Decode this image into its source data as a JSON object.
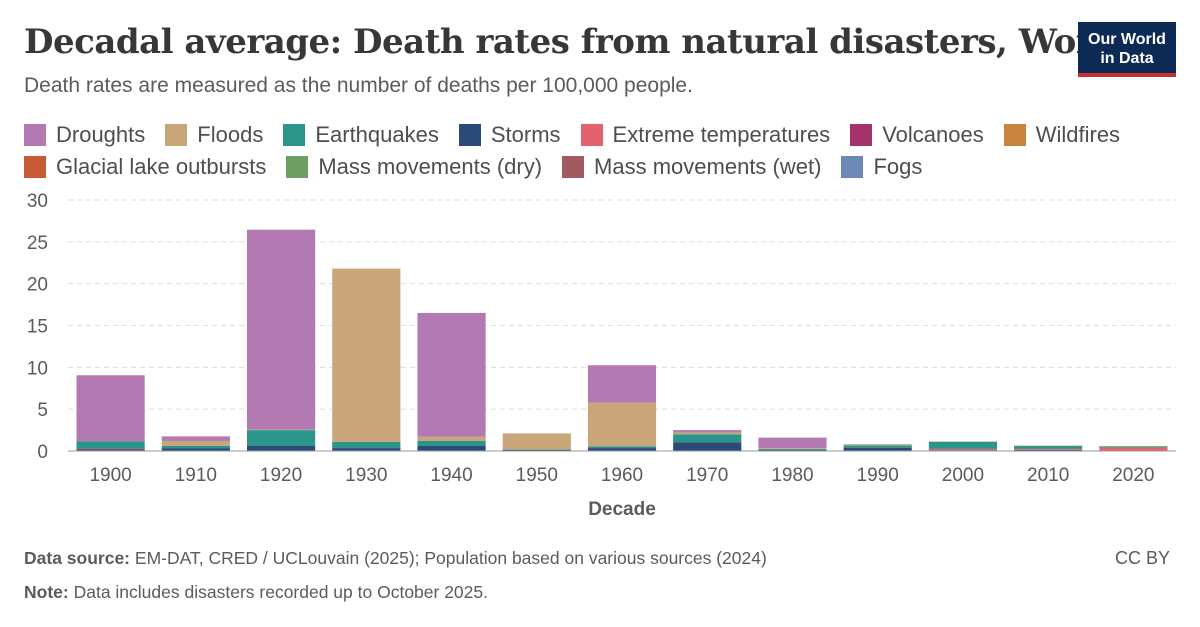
{
  "header": {
    "title": "Decadal average: Death rates from natural disasters, World",
    "subtitle": "Death rates are measured as the number of deaths per 100,000 people.",
    "logo_line1": "Our World",
    "logo_line2": "in Data"
  },
  "footer": {
    "source_label": "Data source:",
    "source_text": "EM-DAT, CRED / UCLouvain (2025); Population based on various sources (2024)",
    "note_label": "Note:",
    "note_text": "Data includes disasters recorded up to October 2025.",
    "license": "CC BY"
  },
  "chart_data": {
    "type": "bar",
    "stacked": true,
    "xlabel": "Decade",
    "ylabel": "",
    "ylim": [
      0,
      30
    ],
    "yticks": [
      0,
      5,
      10,
      15,
      20,
      25,
      30
    ],
    "grid": "horizontal-dashed",
    "legend_position": "top",
    "categories": [
      "1900",
      "1910",
      "1920",
      "1930",
      "1940",
      "1950",
      "1960",
      "1970",
      "1980",
      "1990",
      "2000",
      "2010",
      "2020"
    ],
    "series": [
      {
        "name": "Volcanoes",
        "color": "#a4336c",
        "values": [
          0.2,
          0,
          0,
          0,
          0,
          0,
          0,
          0,
          0,
          0,
          0,
          0,
          0
        ]
      },
      {
        "name": "Storms",
        "color": "#2c4a78",
        "values": [
          0.05,
          0.3,
          0.6,
          0.35,
          0.6,
          0.15,
          0.35,
          1.05,
          0.15,
          0.4,
          0.1,
          0.15,
          0.05
        ]
      },
      {
        "name": "Extreme temperatures",
        "color": "#e2636f",
        "values": [
          0,
          0,
          0,
          0,
          0,
          0,
          0,
          0,
          0,
          0,
          0.15,
          0.1,
          0.35
        ]
      },
      {
        "name": "Earthquakes",
        "color": "#2c958a",
        "values": [
          0.9,
          0.3,
          1.9,
          0.75,
          0.6,
          0.05,
          0.2,
          0.95,
          0.1,
          0.25,
          0.85,
          0.35,
          0.1
        ]
      },
      {
        "name": "Floods",
        "color": "#c9a679",
        "values": [
          0,
          0.6,
          0.05,
          20.7,
          0.5,
          1.9,
          5.25,
          0.2,
          0.1,
          0.1,
          0.05,
          0.05,
          0.05
        ]
      },
      {
        "name": "Mass movements (dry)",
        "color": "#6e9e62",
        "values": [
          0,
          0,
          0,
          0,
          0,
          0,
          0,
          0,
          0,
          0.05,
          0,
          0,
          0.05
        ]
      },
      {
        "name": "Wildfires",
        "color": "#c88540",
        "values": [
          0,
          0,
          0,
          0,
          0,
          0,
          0,
          0,
          0,
          0,
          0,
          0,
          0
        ]
      },
      {
        "name": "Glacial lake outbursts",
        "color": "#c65a36",
        "values": [
          0,
          0,
          0,
          0,
          0,
          0,
          0,
          0,
          0,
          0,
          0,
          0,
          0
        ]
      },
      {
        "name": "Mass movements (wet)",
        "color": "#a15a62",
        "values": [
          0,
          0,
          0,
          0,
          0,
          0,
          0,
          0,
          0,
          0,
          0,
          0,
          0
        ]
      },
      {
        "name": "Fogs",
        "color": "#6d88b5",
        "values": [
          0,
          0,
          0,
          0,
          0,
          0,
          0,
          0,
          0,
          0,
          0,
          0,
          0
        ]
      },
      {
        "name": "Droughts",
        "color": "#b379b2",
        "values": [
          7.9,
          0.55,
          23.9,
          0,
          14.8,
          0,
          4.45,
          0.3,
          1.25,
          0,
          0,
          0,
          0
        ]
      }
    ],
    "legend_order": [
      "Droughts",
      "Floods",
      "Earthquakes",
      "Storms",
      "Extreme temperatures",
      "Volcanoes",
      "Wildfires",
      "Glacial lake outbursts",
      "Mass movements (dry)",
      "Mass movements (wet)",
      "Fogs"
    ]
  }
}
